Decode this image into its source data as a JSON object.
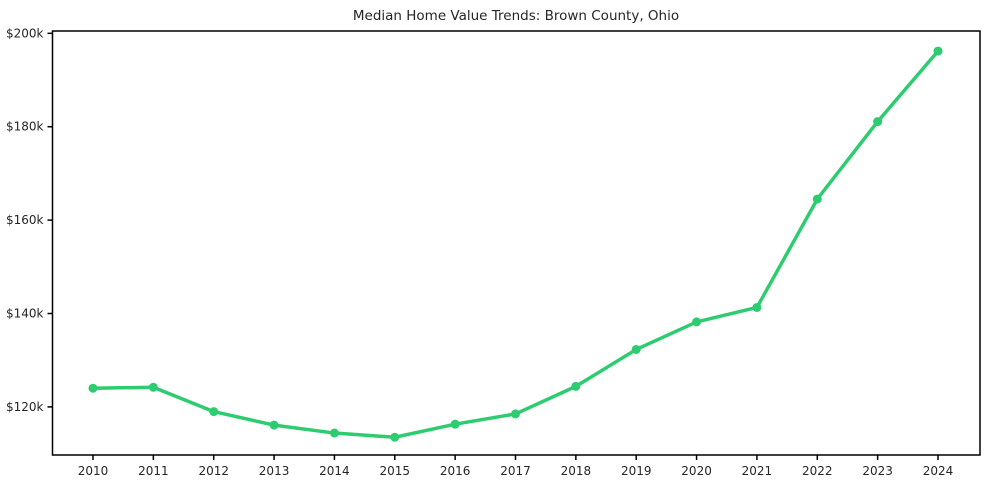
{
  "chart_data": {
    "type": "line",
    "title": "Median Home Value Trends: Brown County, Ohio",
    "xlabel": "",
    "ylabel": "",
    "x": [
      2010,
      2011,
      2012,
      2013,
      2014,
      2015,
      2016,
      2017,
      2018,
      2019,
      2020,
      2021,
      2022,
      2023,
      2024
    ],
    "series": [
      {
        "name": "Median Home Value",
        "values": [
          124000,
          124200,
          119000,
          116100,
          114400,
          113500,
          116300,
          118500,
          124400,
          132300,
          138200,
          141300,
          164500,
          181100,
          196200
        ]
      }
    ],
    "ylim": [
      109700,
      200500
    ],
    "yticks": [
      {
        "value": 120000,
        "label": "$120k"
      },
      {
        "value": 140000,
        "label": "$140k"
      },
      {
        "value": 160000,
        "label": "$160k"
      },
      {
        "value": 180000,
        "label": "$180k"
      },
      {
        "value": 200000,
        "label": "$200k"
      }
    ],
    "xtick_labels": [
      "2010",
      "2011",
      "2012",
      "2013",
      "2014",
      "2015",
      "2016",
      "2017",
      "2018",
      "2019",
      "2020",
      "2021",
      "2022",
      "2023",
      "2024"
    ],
    "grid": false,
    "legend_position": "none",
    "line_color": "#2ecc71",
    "marker": "circle",
    "axis_color": "#000000",
    "text_color": "#262626",
    "background_color": "#ffffff"
  }
}
